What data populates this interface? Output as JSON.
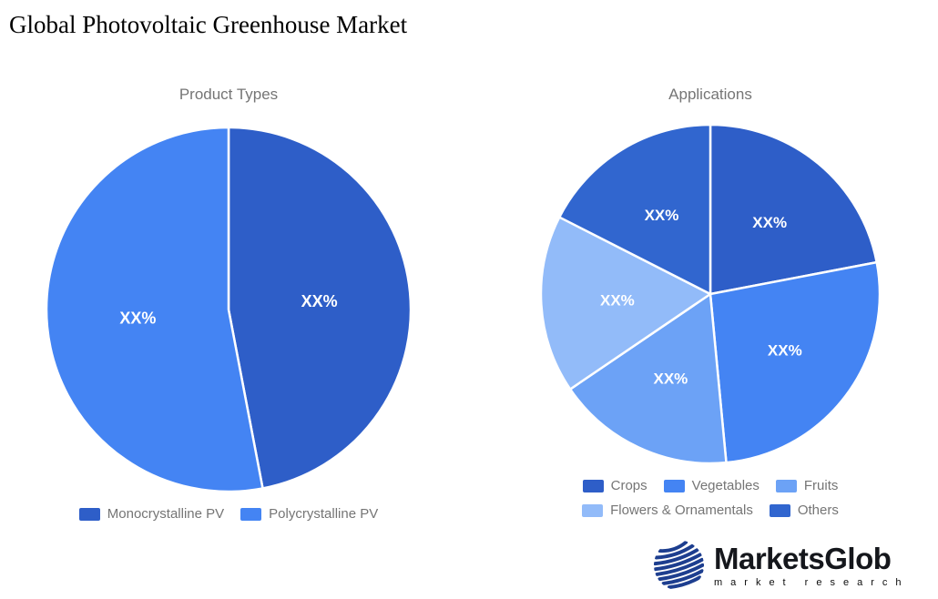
{
  "page": {
    "title": "Global Photovoltaic Greenhouse Market",
    "background": "#ffffff"
  },
  "chart_data": [
    {
      "type": "pie",
      "title": "Product Types",
      "categories": [
        "Monocrystalline PV",
        "Polycrystalline PV"
      ],
      "values": [
        47,
        53
      ],
      "value_labels": [
        "XX%",
        "XX%"
      ],
      "colors": [
        "#2e5ec8",
        "#4484f3"
      ],
      "legend_rows": [
        [
          "Monocrystalline PV",
          "Polycrystalline PV"
        ]
      ],
      "legend_position": "bottom",
      "start_angle_deg": 0,
      "slice_border_color": "#ffffff",
      "label_color": "#ffffff",
      "title_color": "#757575"
    },
    {
      "type": "pie",
      "title": "Applications",
      "categories": [
        "Crops",
        "Vegetables",
        "Fruits",
        "Flowers & Ornamentals",
        "Others"
      ],
      "values": [
        22,
        26.5,
        17,
        17,
        17.5
      ],
      "value_labels": [
        "XX%",
        "XX%",
        "XX%",
        "XX%",
        "XX%"
      ],
      "colors": [
        "#2e5ec8",
        "#4484f3",
        "#6ca2f6",
        "#92bbf9",
        "#3166cf"
      ],
      "legend_rows": [
        [
          "Crops",
          "Vegetables",
          "Fruits"
        ],
        [
          "Flowers & Ornamentals",
          "Others"
        ]
      ],
      "legend_position": "bottom",
      "start_angle_deg": 0,
      "slice_border_color": "#ffffff",
      "label_color": "#ffffff",
      "title_color": "#757575"
    }
  ],
  "logo": {
    "brand": "MarketsGlob",
    "tagline": "market research",
    "globe_color": "#1d3e8f"
  }
}
